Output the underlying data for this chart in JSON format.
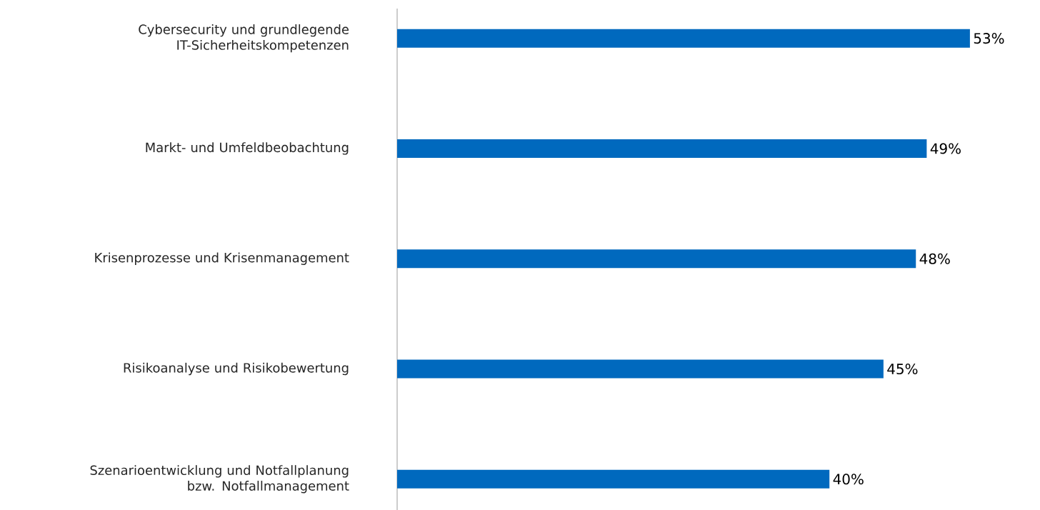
{
  "chart_data": {
    "type": "bar",
    "orientation": "horizontal",
    "categories": [
      "Cybersecurity und grundlegende IT-Sicherheitskompetenzen",
      "Markt- und Umfeldbeobachtung",
      "Krisenprozesse und Krisenmanagement",
      "Risikoanalyse und Risikobewertung",
      "Szenarioentwicklung und Notfallplanung bzw. Notfallmanagement"
    ],
    "values": [
      53,
      49,
      48,
      45,
      40
    ],
    "value_labels": [
      "53%",
      "49%",
      "48%",
      "45%",
      "40%"
    ],
    "color": "#0069be"
  }
}
